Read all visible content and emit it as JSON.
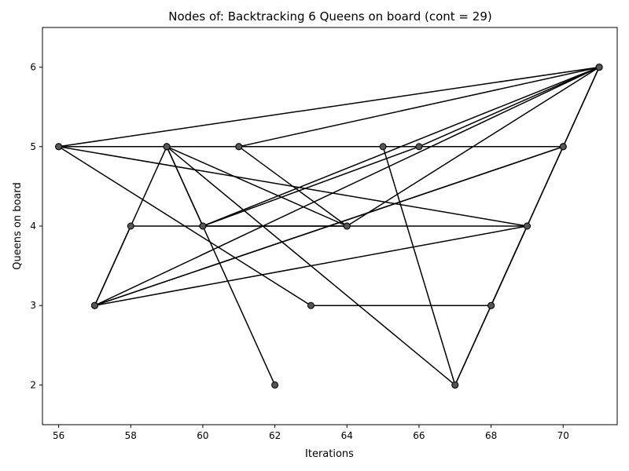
{
  "chart_data": {
    "type": "line",
    "title": "Nodes of: Backtracking 6 Queens on board (cont = 29)",
    "xlabel": "Iterations",
    "ylabel": "Queens on board",
    "xlim": [
      55.55,
      71.5
    ],
    "ylim": [
      1.5,
      6.5
    ],
    "xticks": [
      56,
      58,
      60,
      62,
      64,
      66,
      68,
      70
    ],
    "yticks": [
      2,
      3,
      4,
      5,
      6
    ],
    "grid": false,
    "legend": "none",
    "line_color": "#000000",
    "marker_color": "#555555",
    "series": [
      {
        "points": [
          [
            62,
            2
          ],
          [
            59,
            5
          ],
          [
            57,
            3
          ],
          [
            58,
            4
          ],
          [
            69,
            4
          ],
          [
            70,
            5
          ],
          [
            56,
            5
          ],
          [
            63,
            3
          ],
          [
            68,
            3
          ],
          [
            69,
            4
          ],
          [
            57,
            3
          ],
          [
            70,
            5
          ],
          [
            71,
            6
          ],
          [
            60,
            4
          ],
          [
            59,
            5
          ],
          [
            67,
            2
          ],
          [
            69,
            4
          ],
          [
            56,
            5
          ],
          [
            71,
            6
          ],
          [
            61,
            5
          ],
          [
            64,
            4
          ],
          [
            71,
            6
          ],
          [
            57,
            3
          ],
          [
            70,
            5
          ],
          [
            61,
            5
          ],
          [
            65,
            5
          ],
          [
            67,
            2
          ],
          [
            68,
            3
          ],
          [
            71,
            6
          ],
          [
            66,
            5
          ],
          [
            60,
            4
          ],
          [
            64,
            4
          ],
          [
            59,
            5
          ]
        ]
      }
    ]
  }
}
